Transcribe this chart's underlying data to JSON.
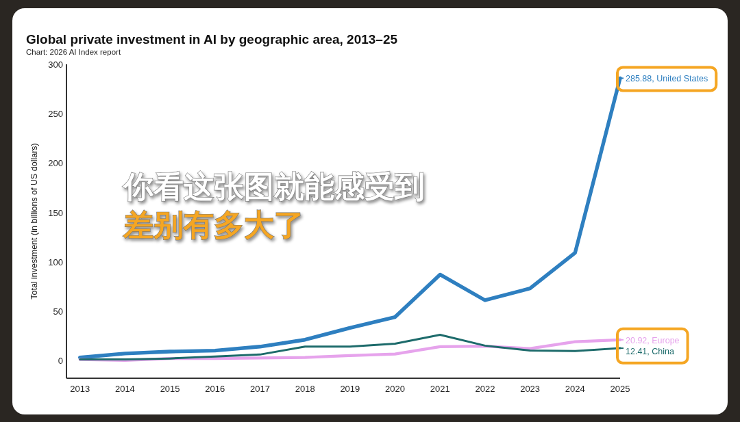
{
  "chart_data": {
    "type": "line",
    "title": "Global private investment in AI by geographic area, 2013–25",
    "ylabel": "Total investment (in billions of US dollars)",
    "annotations": [
      "Chart: 2026 AI Index report",
      "你看这张图就能感受到",
      "差别有多大了"
    ],
    "x": [
      2013,
      2014,
      2015,
      2016,
      2017,
      2018,
      2019,
      2020,
      2021,
      2022,
      2023,
      2024,
      2025
    ],
    "series": [
      {
        "color": "#2e7fc0",
        "values": [
          3,
          7,
          9,
          10,
          14,
          21,
          33,
          44,
          87,
          61,
          73,
          109,
          285.88
        ],
        "value_labels": [
          null,
          null,
          null,
          null,
          null,
          null,
          null,
          null,
          null,
          null,
          null,
          null,
          "285.88, United States"
        ]
      },
      {
        "color": "#e6a3ec",
        "values": [
          1,
          0,
          2,
          2,
          2.5,
          3,
          5,
          6.5,
          14,
          14.5,
          12,
          19,
          20.92
        ],
        "value_labels": [
          null,
          null,
          null,
          null,
          null,
          null,
          null,
          null,
          null,
          null,
          null,
          null,
          "20.92, Europe"
        ]
      },
      {
        "color": "#1d6b6b",
        "values": [
          1,
          1,
          2,
          4,
          6,
          14,
          14,
          17,
          26,
          15,
          10,
          9.5,
          12.41
        ],
        "value_labels": [
          null,
          null,
          null,
          null,
          null,
          null,
          null,
          null,
          null,
          null,
          null,
          null,
          "12.41, China"
        ]
      }
    ],
    "xlim": [
      2012.7,
      2025
    ],
    "ylim": [
      -18,
      300
    ],
    "xticks": [
      2013,
      2014,
      2015,
      2016,
      2017,
      2018,
      2019,
      2020,
      2021,
      2022,
      2023,
      2024,
      2025
    ],
    "yticks": [
      0,
      50,
      100,
      150,
      200,
      250,
      300
    ]
  }
}
